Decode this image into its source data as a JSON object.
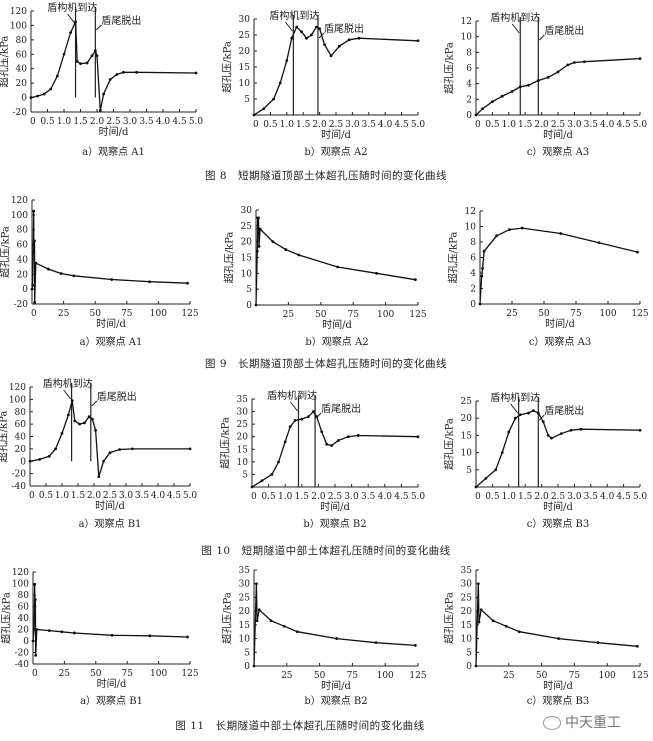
{
  "figures": [
    {
      "caption": "图 8　短期隧道顶部土体超孔压随时间的变化曲线"
    },
    {
      "caption": "图 9　长期隧道顶部土体超孔压随时间的变化曲线"
    },
    {
      "caption": "图 10　短期隧道中部土体超孔压随时间的变化曲线"
    },
    {
      "caption": "图 11　长期隧道中部土体超孔压随时间的变化曲线"
    }
  ],
  "watermark": "中天重工",
  "chart_data": [
    {
      "type": "line",
      "figure": 0,
      "subcaption": "a）观察点 A1",
      "xlabel": "时间/d",
      "ylabel": "超孔压/kPa",
      "xlim": [
        0,
        5
      ],
      "ylim": [
        -20,
        120
      ],
      "xticks": [
        0,
        0.5,
        1.0,
        1.5,
        2.0,
        2.5,
        3.0,
        3.5,
        4.0,
        4.5,
        5.0
      ],
      "yticks": [
        -20,
        0,
        20,
        40,
        60,
        80,
        100,
        120
      ],
      "events": [
        {
          "x": 1.35,
          "label": "盾构机到达"
        },
        {
          "x": 1.95,
          "label": "盾尾脱出"
        }
      ],
      "points": [
        [
          0,
          0
        ],
        [
          0.2,
          2
        ],
        [
          0.4,
          5
        ],
        [
          0.6,
          12
        ],
        [
          0.8,
          30
        ],
        [
          1.0,
          60
        ],
        [
          1.2,
          90
        ],
        [
          1.35,
          105
        ],
        [
          1.4,
          50
        ],
        [
          1.5,
          47
        ],
        [
          1.7,
          48
        ],
        [
          1.85,
          58
        ],
        [
          1.95,
          65
        ],
        [
          2.0,
          58
        ],
        [
          2.1,
          -18
        ],
        [
          2.2,
          5
        ],
        [
          2.4,
          25
        ],
        [
          2.6,
          32
        ],
        [
          2.8,
          35
        ],
        [
          3.2,
          35
        ],
        [
          5.0,
          34
        ]
      ]
    },
    {
      "type": "line",
      "figure": 0,
      "subcaption": "b）观察点 A2",
      "xlabel": "时间/d",
      "ylabel": "超孔压/kPa",
      "xlim": [
        0,
        5
      ],
      "ylim": [
        0,
        30
      ],
      "xticks": [
        0,
        0.5,
        1.0,
        1.5,
        2.0,
        2.5,
        3.0,
        3.5,
        4.0,
        4.5,
        5.0
      ],
      "yticks": [
        5,
        10,
        15,
        20,
        25,
        30
      ],
      "events": [
        {
          "x": 1.2,
          "label": "盾构机到达"
        },
        {
          "x": 1.95,
          "label": "盾尾脱出"
        }
      ],
      "points": [
        [
          0,
          0
        ],
        [
          0.3,
          2
        ],
        [
          0.6,
          5
        ],
        [
          0.8,
          10
        ],
        [
          1.0,
          17
        ],
        [
          1.15,
          24
        ],
        [
          1.3,
          27.5
        ],
        [
          1.45,
          26
        ],
        [
          1.6,
          24
        ],
        [
          1.75,
          25
        ],
        [
          1.9,
          27.5
        ],
        [
          2.0,
          27
        ],
        [
          2.15,
          22
        ],
        [
          2.35,
          18.5
        ],
        [
          2.6,
          21.5
        ],
        [
          2.9,
          23.5
        ],
        [
          3.2,
          24
        ],
        [
          5.0,
          23.2
        ]
      ]
    },
    {
      "type": "line",
      "figure": 0,
      "subcaption": "c）观察点 A3",
      "xlabel": "时间/d",
      "ylabel": "超孔压/kPa",
      "xlim": [
        0,
        5
      ],
      "ylim": [
        0,
        12
      ],
      "xticks": [
        0,
        0.5,
        1.0,
        1.5,
        2.0,
        2.5,
        3.0,
        3.5,
        4.0,
        4.5,
        5.0
      ],
      "yticks": [
        0,
        2,
        4,
        6,
        8,
        10,
        12
      ],
      "events": [
        {
          "x": 1.35,
          "label": "盾构机到达"
        },
        {
          "x": 1.9,
          "label": "盾尾脱出"
        }
      ],
      "points": [
        [
          0,
          0
        ],
        [
          0.2,
          0.8
        ],
        [
          0.5,
          1.7
        ],
        [
          0.8,
          2.4
        ],
        [
          1.1,
          3
        ],
        [
          1.35,
          3.6
        ],
        [
          1.6,
          3.8
        ],
        [
          1.9,
          4.4
        ],
        [
          2.2,
          4.8
        ],
        [
          2.5,
          5.5
        ],
        [
          2.8,
          6.4
        ],
        [
          3.0,
          6.7
        ],
        [
          3.3,
          6.8
        ],
        [
          5,
          7.2
        ]
      ]
    },
    {
      "type": "line",
      "figure": 1,
      "subcaption": "a）观察点 A1",
      "xlabel": "时间/d",
      "ylabel": "超孔压/kPa",
      "xlim": [
        0,
        125
      ],
      "ylim": [
        -20,
        120
      ],
      "xticks": [
        0,
        25,
        50,
        75,
        100,
        125
      ],
      "yticks": [
        -20,
        0,
        20,
        40,
        60,
        80,
        100,
        120
      ],
      "events": [],
      "points": [
        [
          0,
          0
        ],
        [
          0.5,
          5
        ],
        [
          1,
          60
        ],
        [
          1.35,
          105
        ],
        [
          1.4,
          50
        ],
        [
          1.95,
          65
        ],
        [
          2.1,
          -18
        ],
        [
          3,
          35
        ],
        [
          13,
          27
        ],
        [
          23,
          21
        ],
        [
          33,
          18
        ],
        [
          63,
          13
        ],
        [
          93,
          10
        ],
        [
          123,
          8
        ]
      ]
    },
    {
      "type": "line",
      "figure": 1,
      "subcaption": "b）观察点 A2",
      "xlabel": "时间/d",
      "ylabel": "超孔压/kPa",
      "xlim": [
        0,
        125
      ],
      "ylim": [
        0,
        30
      ],
      "xticks": [
        25,
        50,
        75,
        100,
        125
      ],
      "yticks": [
        0,
        5,
        10,
        15,
        20,
        25,
        30
      ],
      "events": [],
      "points": [
        [
          0,
          0
        ],
        [
          1,
          17
        ],
        [
          1.3,
          27.5
        ],
        [
          1.6,
          24
        ],
        [
          1.9,
          27.5
        ],
        [
          2.35,
          18.5
        ],
        [
          3.2,
          24
        ],
        [
          13,
          20
        ],
        [
          23,
          17.5
        ],
        [
          33,
          15.8
        ],
        [
          63,
          12
        ],
        [
          93,
          10
        ],
        [
          123,
          8
        ]
      ]
    },
    {
      "type": "line",
      "figure": 1,
      "subcaption": "c）观察点 A3",
      "xlabel": "时间/d",
      "ylabel": "超孔压/kPa",
      "xlim": [
        0,
        125
      ],
      "ylim": [
        0,
        12
      ],
      "xticks": [
        25,
        50,
        75,
        100,
        125
      ],
      "yticks": [
        0,
        2,
        4,
        6,
        8,
        10,
        12
      ],
      "events": [],
      "points": [
        [
          0,
          0
        ],
        [
          1.35,
          3.6
        ],
        [
          2,
          4.6
        ],
        [
          3.2,
          6.8
        ],
        [
          13,
          8.8
        ],
        [
          23,
          9.6
        ],
        [
          33,
          9.8
        ],
        [
          63,
          9.1
        ],
        [
          93,
          7.9
        ],
        [
          123,
          6.7
        ]
      ]
    },
    {
      "type": "line",
      "figure": 2,
      "subcaption": "a）观察点 B1",
      "xlabel": "时间/d",
      "ylabel": "超孔压/kPa",
      "xlim": [
        0,
        5
      ],
      "ylim": [
        -40,
        120
      ],
      "xticks": [
        0,
        0.5,
        1.0,
        1.5,
        2.0,
        2.5,
        3.0,
        3.5,
        4.0,
        4.5,
        5.0
      ],
      "yticks": [
        -40,
        -20,
        0,
        20,
        40,
        60,
        80,
        100,
        120
      ],
      "events": [
        {
          "x": 1.3,
          "label": "盾构机到达"
        },
        {
          "x": 1.9,
          "label": "盾尾脱出"
        }
      ],
      "points": [
        [
          0,
          0
        ],
        [
          0.3,
          3
        ],
        [
          0.6,
          8
        ],
        [
          0.8,
          20
        ],
        [
          1.0,
          45
        ],
        [
          1.2,
          75
        ],
        [
          1.32,
          98
        ],
        [
          1.4,
          65
        ],
        [
          1.55,
          60
        ],
        [
          1.7,
          62
        ],
        [
          1.85,
          72
        ],
        [
          1.95,
          68
        ],
        [
          2.05,
          50
        ],
        [
          2.15,
          -25
        ],
        [
          2.3,
          0
        ],
        [
          2.5,
          14
        ],
        [
          2.8,
          19
        ],
        [
          3.2,
          20
        ],
        [
          5,
          20
        ]
      ]
    },
    {
      "type": "line",
      "figure": 2,
      "subcaption": "b）观察点 B2",
      "xlabel": "时间/d",
      "ylabel": "超孔压/kPa",
      "xlim": [
        0,
        5
      ],
      "ylim": [
        0,
        35
      ],
      "xticks": [
        0,
        0.5,
        1.0,
        1.5,
        2.0,
        2.5,
        3.0,
        3.5,
        4.0,
        4.5,
        5.0
      ],
      "yticks": [
        5,
        10,
        15,
        20,
        25,
        30,
        35
      ],
      "events": [
        {
          "x": 1.4,
          "label": "盾构机到达"
        },
        {
          "x": 1.9,
          "label": "盾尾脱出"
        }
      ],
      "points": [
        [
          0,
          0
        ],
        [
          0.3,
          2.5
        ],
        [
          0.6,
          5
        ],
        [
          0.8,
          10
        ],
        [
          1.0,
          18
        ],
        [
          1.15,
          24
        ],
        [
          1.3,
          26.5
        ],
        [
          1.5,
          27
        ],
        [
          1.7,
          28
        ],
        [
          1.85,
          30
        ],
        [
          1.95,
          28
        ],
        [
          2.1,
          22
        ],
        [
          2.25,
          17
        ],
        [
          2.4,
          16.5
        ],
        [
          2.6,
          18.5
        ],
        [
          2.9,
          20
        ],
        [
          3.2,
          20.5
        ],
        [
          5,
          20
        ]
      ]
    },
    {
      "type": "line",
      "figure": 2,
      "subcaption": "c）观察点 B3",
      "xlabel": "时间/d",
      "ylabel": "超孔压/kPa",
      "xlim": [
        0,
        5
      ],
      "ylim": [
        0,
        25
      ],
      "xticks": [
        0,
        0.5,
        1.0,
        1.5,
        2.0,
        2.5,
        3.0,
        3.5,
        4.0,
        4.5,
        5.0
      ],
      "yticks": [
        5,
        10,
        15,
        20,
        25
      ],
      "events": [
        {
          "x": 1.3,
          "label": "盾构机到达"
        },
        {
          "x": 1.9,
          "label": "盾尾脱出"
        }
      ],
      "points": [
        [
          0,
          0
        ],
        [
          0.3,
          2.5
        ],
        [
          0.6,
          5
        ],
        [
          0.8,
          10
        ],
        [
          1.0,
          16
        ],
        [
          1.2,
          20
        ],
        [
          1.35,
          21
        ],
        [
          1.6,
          21.5
        ],
        [
          1.75,
          22.2
        ],
        [
          1.9,
          21.5
        ],
        [
          2.05,
          19
        ],
        [
          2.2,
          15
        ],
        [
          2.3,
          14.2
        ],
        [
          2.6,
          15.5
        ],
        [
          2.9,
          16.5
        ],
        [
          3.2,
          16.8
        ],
        [
          5,
          16.5
        ]
      ]
    },
    {
      "type": "line",
      "figure": 3,
      "subcaption": "a）观察点 B1",
      "xlabel": "时间/d",
      "ylabel": "超孔压/kPa",
      "xlim": [
        0,
        125
      ],
      "ylim": [
        -40,
        120
      ],
      "xticks": [
        0,
        25,
        50,
        75,
        100,
        125
      ],
      "yticks": [
        -40,
        -20,
        0,
        20,
        40,
        60,
        80,
        100,
        120
      ],
      "events": [],
      "points": [
        [
          0,
          0
        ],
        [
          0.8,
          20
        ],
        [
          1.32,
          98
        ],
        [
          1.55,
          60
        ],
        [
          1.85,
          72
        ],
        [
          2.15,
          -25
        ],
        [
          3,
          20
        ],
        [
          13,
          18
        ],
        [
          23,
          16
        ],
        [
          33,
          14
        ],
        [
          63,
          10
        ],
        [
          93,
          9
        ],
        [
          123,
          7
        ]
      ]
    },
    {
      "type": "line",
      "figure": 3,
      "subcaption": "b）观察点 B2",
      "xlabel": "时间/d",
      "ylabel": "超孔压/kPa",
      "xlim": [
        0,
        125
      ],
      "ylim": [
        0,
        35
      ],
      "xticks": [
        25,
        50,
        75,
        100,
        125
      ],
      "yticks": [
        0,
        5,
        10,
        15,
        20,
        25,
        30,
        35
      ],
      "events": [],
      "points": [
        [
          0,
          0
        ],
        [
          1.85,
          30
        ],
        [
          2.4,
          16.5
        ],
        [
          4,
          20.5
        ],
        [
          13,
          16.5
        ],
        [
          23,
          14.5
        ],
        [
          33,
          12.5
        ],
        [
          63,
          10
        ],
        [
          93,
          8.5
        ],
        [
          123,
          7.5
        ]
      ]
    },
    {
      "type": "line",
      "figure": 3,
      "subcaption": "c）观察点 B3",
      "xlabel": "时间/d",
      "ylabel": "超孔压/kPa",
      "xlim": [
        0,
        125
      ],
      "ylim": [
        0,
        35
      ],
      "xticks": [
        25,
        50,
        75,
        100,
        125
      ],
      "yticks": [
        0,
        5,
        10,
        15,
        20,
        25,
        30,
        35
      ],
      "events": [],
      "points": [
        [
          0,
          0
        ],
        [
          1.75,
          30
        ],
        [
          2.3,
          16
        ],
        [
          4,
          20.5
        ],
        [
          13,
          16.5
        ],
        [
          23,
          14.5
        ],
        [
          33,
          12.5
        ],
        [
          63,
          10
        ],
        [
          93,
          8.5
        ],
        [
          123,
          7.2
        ]
      ]
    }
  ]
}
